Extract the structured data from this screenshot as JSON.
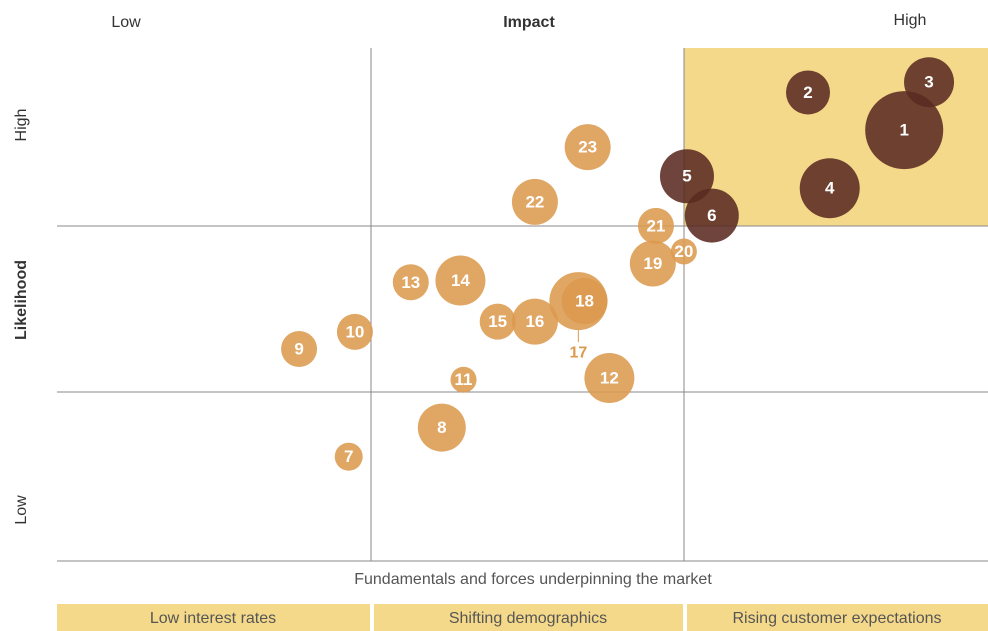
{
  "chart_data": {
    "type": "bubble",
    "x_label": "Impact",
    "y_label": "Likelihood",
    "x_low": "Low",
    "x_high": "High",
    "y_low": "Low",
    "y_high": "High",
    "caption": "Fundamentals and forces underpinning the market",
    "bands": [
      "Low interest rates",
      "Shifting demographics",
      "Rising customer expectations"
    ],
    "xlim": [
      0,
      3
    ],
    "ylim": [
      0,
      3
    ],
    "points": [
      {
        "label": "1",
        "x": 2.73,
        "y": 2.52,
        "size": 39,
        "color": "#5a2a22"
      },
      {
        "label": "2",
        "x": 2.42,
        "y": 2.74,
        "size": 22,
        "color": "#5a2a22"
      },
      {
        "label": "3",
        "x": 2.81,
        "y": 2.8,
        "size": 25,
        "color": "#5a2a22"
      },
      {
        "label": "4",
        "x": 2.49,
        "y": 2.18,
        "size": 30,
        "color": "#5a2a22"
      },
      {
        "label": "5",
        "x": 2.03,
        "y": 2.25,
        "size": 27,
        "color": "#5a2a22"
      },
      {
        "label": "6",
        "x": 2.11,
        "y": 2.02,
        "size": 27,
        "color": "#5a2a22"
      },
      {
        "label": "7",
        "x": 0.94,
        "y": 0.61,
        "size": 14,
        "color": "#dc9a4f"
      },
      {
        "label": "8",
        "x": 1.24,
        "y": 0.78,
        "size": 24,
        "color": "#dc9a4f"
      },
      {
        "label": "9",
        "x": 0.78,
        "y": 1.24,
        "size": 18,
        "color": "#dc9a4f"
      },
      {
        "label": "10",
        "x": 0.96,
        "y": 1.34,
        "size": 18,
        "color": "#dc9a4f"
      },
      {
        "label": "11",
        "x": 1.31,
        "y": 1.06,
        "size": 13,
        "color": "#dc9a4f"
      },
      {
        "label": "12",
        "x": 1.78,
        "y": 1.07,
        "size": 25,
        "color": "#dc9a4f"
      },
      {
        "label": "13",
        "x": 1.14,
        "y": 1.63,
        "size": 18,
        "color": "#dc9a4f"
      },
      {
        "label": "14",
        "x": 1.3,
        "y": 1.64,
        "size": 25,
        "color": "#dc9a4f"
      },
      {
        "label": "15",
        "x": 1.42,
        "y": 1.4,
        "size": 18,
        "color": "#dc9a4f"
      },
      {
        "label": "16",
        "x": 1.54,
        "y": 1.4,
        "size": 23,
        "color": "#dc9a4f"
      },
      {
        "label": "17",
        "x": 1.68,
        "y": 1.52,
        "size": 29,
        "color": "#dc9a4f",
        "label_position": "below"
      },
      {
        "label": "18",
        "x": 1.7,
        "y": 1.52,
        "size": 23,
        "color": "#dc9a4f"
      },
      {
        "label": "19",
        "x": 1.92,
        "y": 1.74,
        "size": 23,
        "color": "#dc9a4f"
      },
      {
        "label": "20",
        "x": 2.02,
        "y": 1.81,
        "size": 13,
        "color": "#dc9a4f"
      },
      {
        "label": "21",
        "x": 1.93,
        "y": 1.96,
        "size": 18,
        "color": "#dc9a4f"
      },
      {
        "label": "22",
        "x": 1.54,
        "y": 2.1,
        "size": 23,
        "color": "#dc9a4f"
      },
      {
        "label": "23",
        "x": 1.71,
        "y": 2.42,
        "size": 23,
        "color": "#dc9a4f"
      }
    ]
  }
}
